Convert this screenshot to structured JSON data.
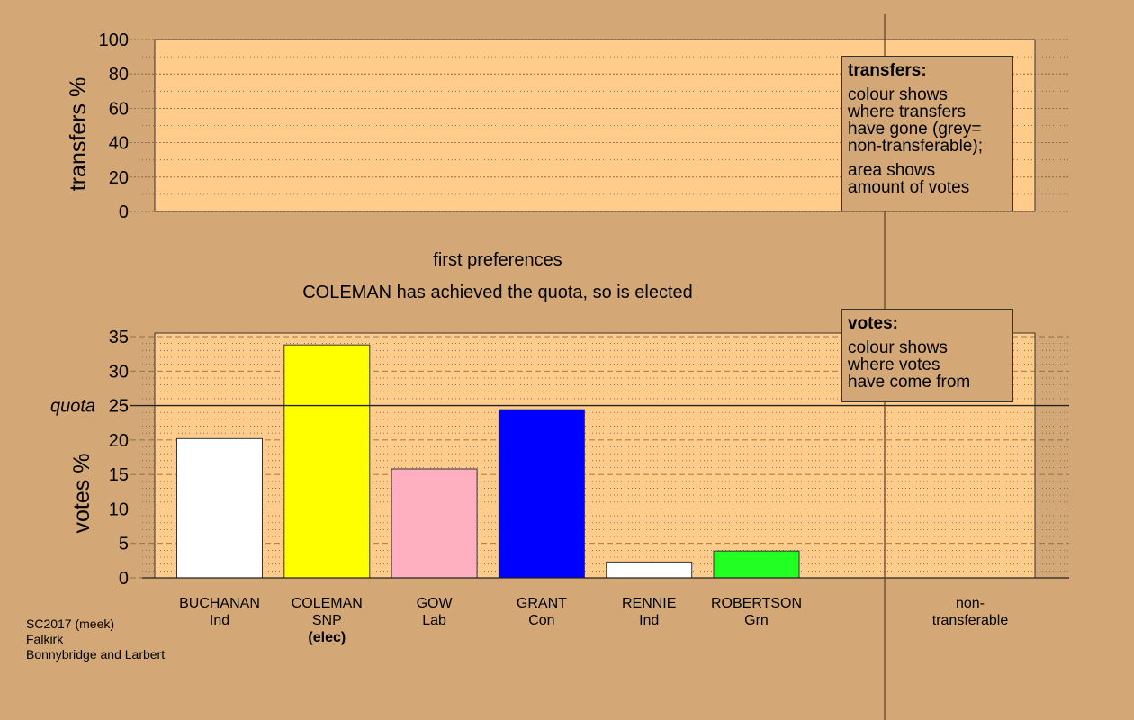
{
  "chart_data": [
    {
      "type": "bar",
      "id": "transfers",
      "ylabel": "transfers %",
      "ylim": [
        0,
        100
      ],
      "yticks": [
        0,
        20,
        40,
        60,
        80,
        100
      ],
      "grid": "dotted minor every 10, dashed major every 20",
      "series": [],
      "legend": {
        "title": "transfers:",
        "lines": [
          "colour shows",
          "where transfers",
          "have gone (grey=",
          "non-transferable);",
          "",
          "area shows",
          "amount of votes"
        ],
        "placement": "top-right"
      }
    },
    {
      "type": "bar",
      "id": "first-preferences",
      "title": "first preferences",
      "subtitle": "COLEMAN has achieved the quota, so is elected",
      "ylabel": "votes %",
      "ylim": [
        0,
        35
      ],
      "yticks": [
        0,
        5,
        10,
        15,
        20,
        25,
        30,
        35
      ],
      "quota": 25,
      "quota_label": "quota",
      "grid": "dotted minor every 1, dashed major every 5",
      "categories": [
        {
          "name": "BUCHANAN",
          "party": "Ind",
          "note": "",
          "value": 20.2,
          "color": "#ffffff"
        },
        {
          "name": "COLEMAN",
          "party": "SNP",
          "note": "(elec)",
          "value": 33.8,
          "color": "#ffff00"
        },
        {
          "name": "GOW",
          "party": "Lab",
          "note": "",
          "value": 15.8,
          "color": "#ffb0c0"
        },
        {
          "name": "GRANT",
          "party": "Con",
          "note": "",
          "value": 24.4,
          "color": "#0000ff"
        },
        {
          "name": "RENNIE",
          "party": "Ind",
          "note": "",
          "value": 2.3,
          "color": "#ffffff"
        },
        {
          "name": "ROBERTSON",
          "party": "Grn",
          "note": "",
          "value": 3.9,
          "color": "#22ff22"
        }
      ],
      "extra_category": {
        "line1": "non-",
        "line2": "transferable"
      },
      "legend": {
        "title": "votes:",
        "lines": [
          "colour shows",
          "where votes",
          "have come from"
        ],
        "placement": "top-right"
      }
    }
  ],
  "footer": {
    "line1": "SC2017 (meek)",
    "line2": "Falkirk",
    "line3": "Bonnybridge and Larbert"
  },
  "colors": {
    "background": "#d4a876",
    "plot_area": "#ffcc8c"
  }
}
